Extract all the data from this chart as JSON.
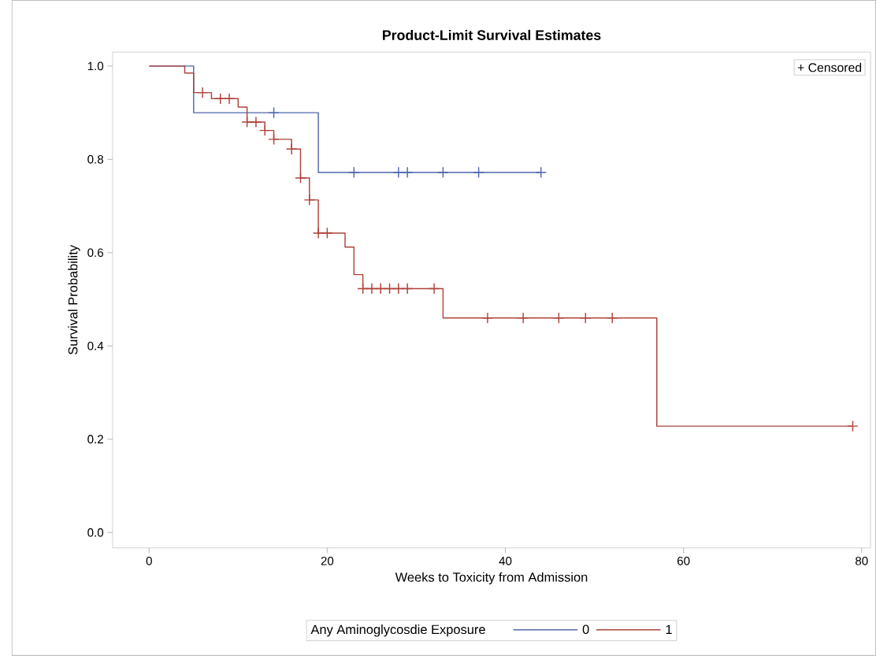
{
  "chart_data": {
    "type": "step",
    "title": "Product-Limit Survival Estimates",
    "xlabel": "Weeks to Toxicity from Admission",
    "ylabel": "Survival Probability",
    "legend_title": "Any Aminoglycosdie Exposure",
    "legend": "bottom",
    "grid": false,
    "xlim": [
      -4.1,
      81
    ],
    "ylim": [
      -0.033,
      1.03
    ],
    "xticks": [
      0,
      20,
      40,
      60,
      80
    ],
    "yticks": [
      {
        "value": 0,
        "label": "0.0"
      },
      {
        "value": 0.2,
        "label": "0.2"
      },
      {
        "value": 0.4,
        "label": "0.4"
      },
      {
        "value": 0.6,
        "label": "0.6"
      },
      {
        "value": 0.8,
        "label": "0.8"
      },
      {
        "value": 1,
        "label": "1.0"
      }
    ],
    "annotations": [
      "+ Censored"
    ],
    "series": [
      {
        "name": "0",
        "color": "#5068ae",
        "marker": "none",
        "x": [
          0,
          5,
          19,
          44
        ],
        "values": [
          1,
          0.9,
          0.772,
          0.772
        ]
      },
      {
        "name": "1",
        "color": "#b0433b",
        "marker": "none",
        "x": [
          0,
          4,
          5,
          7,
          10,
          11,
          13,
          14,
          16,
          17,
          18,
          19,
          22,
          23,
          24,
          33,
          57,
          79
        ],
        "values": [
          1,
          0.985,
          0.943,
          0.93,
          0.912,
          0.88,
          0.862,
          0.843,
          0.822,
          0.76,
          0.713,
          0.642,
          0.612,
          0.553,
          0.523,
          0.46,
          0.228,
          0.228
        ]
      },
      {
        "type": "scatter",
        "color": "#5068ae",
        "marker": "cross",
        "x": [
          14,
          23,
          28,
          29,
          33,
          37,
          44
        ],
        "values": [
          0.9,
          0.772,
          0.772,
          0.772,
          0.772,
          0.772,
          0.772
        ]
      },
      {
        "type": "scatter",
        "color": "#b0433b",
        "marker": "cross",
        "x": [
          6,
          8,
          9,
          11,
          12,
          13,
          14,
          16,
          17,
          18,
          19,
          20,
          24,
          25,
          26,
          27,
          28,
          29,
          32,
          38,
          42,
          46,
          49,
          52,
          79
        ],
        "values": [
          0.943,
          0.93,
          0.93,
          0.88,
          0.88,
          0.862,
          0.843,
          0.822,
          0.76,
          0.713,
          0.642,
          0.642,
          0.523,
          0.523,
          0.523,
          0.523,
          0.523,
          0.523,
          0.523,
          0.46,
          0.46,
          0.46,
          0.46,
          0.46,
          0.228
        ]
      }
    ]
  }
}
